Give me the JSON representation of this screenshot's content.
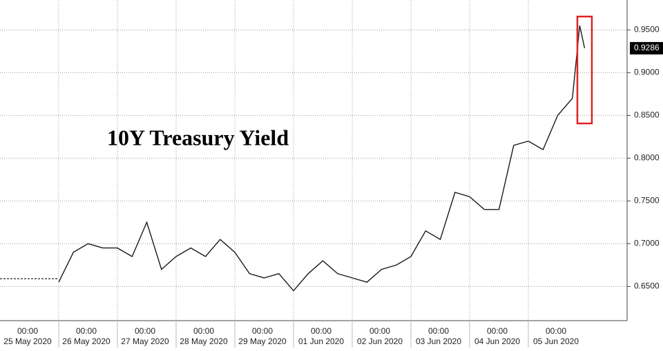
{
  "chart_data": {
    "type": "line",
    "title": "10Y Treasury Yield",
    "categories": [
      "25 May 2020",
      "26 May 2020",
      "27 May 2020",
      "28 May 2020",
      "29 May 2020",
      "01 Jun 2020",
      "02 Jun 2020",
      "03 Jun 2020",
      "04 Jun 2020",
      "05 Jun 2020"
    ],
    "time_label": "00:00",
    "series": [
      {
        "color": "#1a1a1a",
        "dashed": false,
        "x": [
          "26 May 2020 00:00",
          "26 May 2020 06:00",
          "26 May 2020 12:00",
          "26 May 2020 18:00",
          "27 May 2020 00:00",
          "27 May 2020 06:00",
          "27 May 2020 12:00",
          "27 May 2020 18:00",
          "28 May 2020 00:00",
          "28 May 2020 06:00",
          "28 May 2020 12:00",
          "28 May 2020 18:00",
          "29 May 2020 00:00",
          "29 May 2020 06:00",
          "29 May 2020 12:00",
          "29 May 2020 18:00",
          "01 Jun 2020 00:00",
          "01 Jun 2020 06:00",
          "01 Jun 2020 12:00",
          "01 Jun 2020 18:00",
          "02 Jun 2020 00:00",
          "02 Jun 2020 06:00",
          "02 Jun 2020 12:00",
          "02 Jun 2020 18:00",
          "03 Jun 2020 00:00",
          "03 Jun 2020 06:00",
          "03 Jun 2020 12:00",
          "03 Jun 2020 18:00",
          "04 Jun 2020 00:00",
          "04 Jun 2020 06:00",
          "04 Jun 2020 12:00",
          "04 Jun 2020 18:00",
          "05 Jun 2020 00:00",
          "05 Jun 2020 06:00",
          "05 Jun 2020 12:00",
          "05 Jun 2020 18:00",
          "05 Jun 2020 21:00",
          "05 Jun 2020 23:00"
        ],
        "values": [
          0.655,
          0.69,
          0.7,
          0.695,
          0.695,
          0.685,
          0.725,
          0.67,
          0.685,
          0.695,
          0.685,
          0.705,
          0.69,
          0.665,
          0.66,
          0.665,
          0.645,
          0.665,
          0.68,
          0.665,
          0.66,
          0.655,
          0.67,
          0.675,
          0.685,
          0.715,
          0.705,
          0.76,
          0.755,
          0.74,
          0.74,
          0.815,
          0.82,
          0.81,
          0.85,
          0.87,
          0.955,
          0.9286
        ]
      },
      {
        "color": "#333333",
        "dashed": true,
        "x": [
          "25 May 2020 00:00",
          "26 May 2020 00:00"
        ],
        "values": [
          0.659,
          0.659
        ]
      }
    ],
    "ylim": [
      0.61,
      0.985
    ],
    "yticks": [
      {
        "value": 0.65,
        "label": "0.6500"
      },
      {
        "value": 0.7,
        "label": "0.7000"
      },
      {
        "value": 0.75,
        "label": "0.7500"
      },
      {
        "value": 0.8,
        "label": "0.8000"
      },
      {
        "value": 0.85,
        "label": "0.8500"
      },
      {
        "value": 0.9,
        "label": "0.9000"
      },
      {
        "value": 0.95,
        "label": "0.9500"
      }
    ],
    "grid": true
  }
}
